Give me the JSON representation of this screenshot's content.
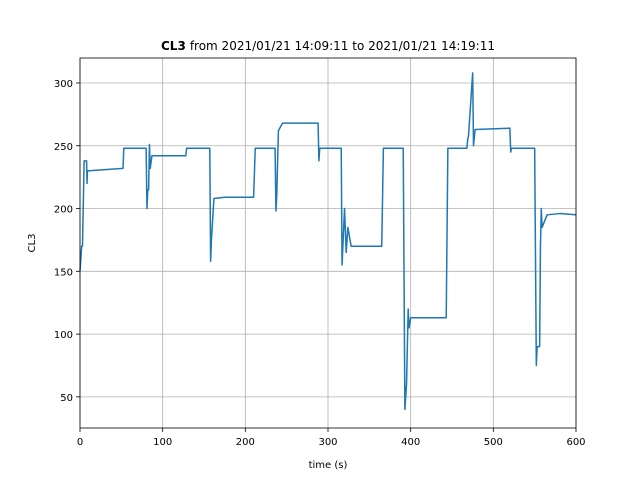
{
  "chart_data": {
    "type": "line",
    "title": {
      "bold": "CL3",
      "text": "from 2021/01/21 14:09:11 to 2021/01/21 14:19:11"
    },
    "x_label": "time (s)",
    "y_label": "CL3",
    "x": [
      0,
      2,
      3,
      5,
      8,
      8.5,
      9,
      52,
      53,
      80,
      81,
      82,
      83,
      84,
      85,
      87,
      128,
      129,
      157,
      158,
      159,
      162,
      175,
      210,
      212,
      236,
      237,
      238,
      240,
      245,
      288,
      289,
      290,
      316,
      317,
      320,
      322,
      324,
      328,
      365,
      367,
      391,
      393,
      395,
      397,
      398,
      400,
      443,
      445,
      468,
      469,
      470,
      475,
      476,
      478,
      520,
      521,
      522,
      550,
      552,
      553,
      556,
      557,
      558,
      559,
      565,
      580,
      600
    ],
    "series": [
      {
        "name": "CL3",
        "color": "#1f77b4",
        "values": [
          150,
          170,
          170,
          238,
          238,
          220,
          230,
          232,
          248,
          248,
          200,
          215,
          215,
          251,
          232,
          242,
          242,
          248,
          248,
          158,
          175,
          208,
          209,
          209,
          248,
          248,
          198,
          210,
          262,
          268,
          268,
          238,
          248,
          248,
          155,
          200,
          165,
          185,
          170,
          170,
          248,
          248,
          40,
          60,
          120,
          105,
          113,
          113,
          248,
          248,
          255,
          258,
          308,
          250,
          263,
          264,
          245,
          248,
          248,
          75,
          90,
          90,
          170,
          200,
          185,
          195,
          196,
          195
        ]
      }
    ],
    "xlim": [
      0,
      600
    ],
    "ylim": [
      25.2,
      319.9
    ],
    "xticks": [
      0,
      100,
      200,
      300,
      400,
      500,
      600
    ],
    "yticks": [
      50,
      100,
      150,
      200,
      250,
      300
    ],
    "grid": true
  }
}
